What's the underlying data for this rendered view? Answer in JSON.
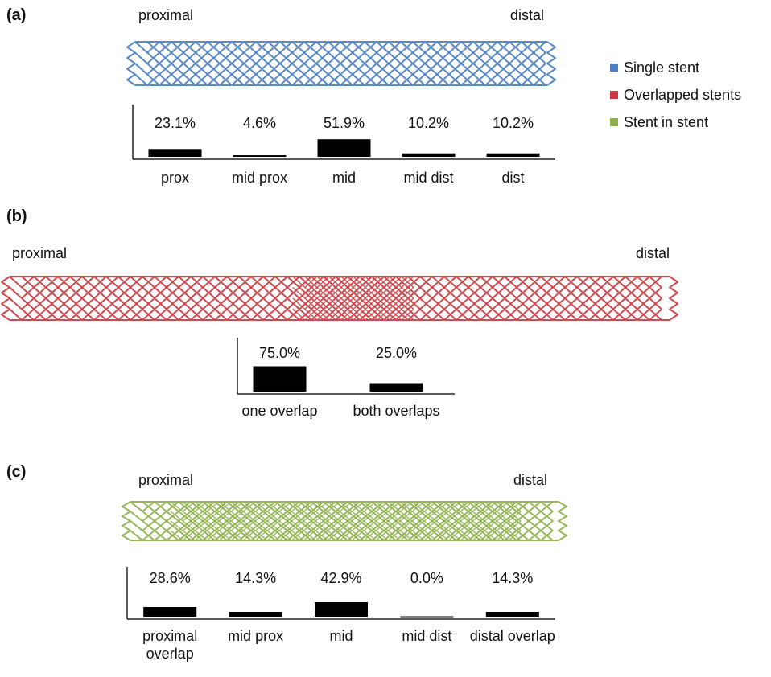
{
  "chart_data": [
    {
      "type": "bar",
      "panel_label": "(a)",
      "left_label": "proximal",
      "right_label": "distal",
      "categories": [
        "prox",
        "mid prox",
        "mid",
        "mid dist",
        "dist"
      ],
      "series": [
        {
          "name": "Single stent",
          "color": "#4a7fc1",
          "values": [
            23.1,
            4.6,
            51.9,
            10.2,
            10.2
          ],
          "value_labels": [
            "23.1%",
            "4.6%",
            "51.9%",
            "10.2%",
            "10.2%"
          ]
        }
      ],
      "color": "#000000",
      "ylim": [
        0,
        100
      ]
    },
    {
      "type": "bar",
      "panel_label": "(b)",
      "left_label": "proximal",
      "right_label": "distal",
      "categories": [
        "one overlap",
        "both overlaps"
      ],
      "series": [
        {
          "name": "Overlapped stents",
          "color": "#c9393f",
          "values": [
            75.0,
            25.0
          ],
          "value_labels": [
            "75.0%",
            "25.0%"
          ]
        }
      ],
      "color": "#000000",
      "ylim": [
        0,
        100
      ]
    },
    {
      "type": "bar",
      "panel_label": "(c)",
      "left_label": "proximal",
      "right_label": "distal",
      "categories": [
        "proximal overlap",
        "mid prox",
        "mid",
        "mid dist",
        "distal overlap"
      ],
      "series": [
        {
          "name": "Stent in stent",
          "color": "#8db04a",
          "values": [
            28.6,
            14.3,
            42.9,
            0.0,
            14.3
          ],
          "value_labels": [
            "28.6%",
            "14.3%",
            "42.9%",
            "0.0%",
            "14.3%"
          ]
        }
      ],
      "color": "#000000",
      "ylim": [
        0,
        100
      ]
    }
  ]
}
